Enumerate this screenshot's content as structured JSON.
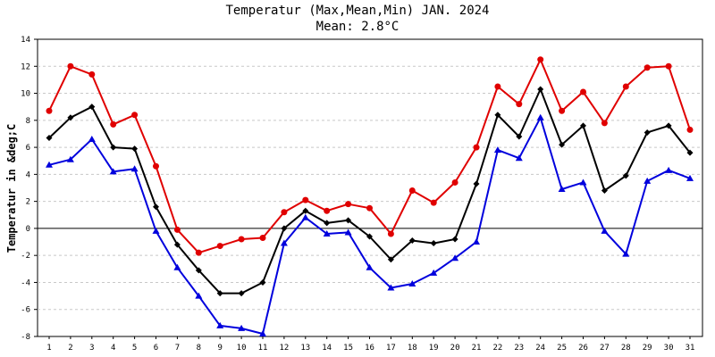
{
  "chart_data": {
    "type": "line",
    "title": "Temperatur (Max,Mean,Min) JAN. 2024",
    "subtitle": "Mean: 2.8°C",
    "ylabel": "Temperatur in &deg;C",
    "xlabel": "",
    "ylim": [
      -8,
      14
    ],
    "yticks": [
      -8,
      -6,
      -4,
      -2,
      0,
      2,
      4,
      6,
      8,
      10,
      12,
      14
    ],
    "categories": [
      "1",
      "2",
      "3",
      "4",
      "5",
      "6",
      "7",
      "8",
      "9",
      "10",
      "11",
      "12",
      "13",
      "14",
      "15",
      "16",
      "17",
      "18",
      "19",
      "20",
      "21",
      "22",
      "23",
      "24",
      "25",
      "26",
      "27",
      "28",
      "29",
      "30",
      "31"
    ],
    "grid": true,
    "series": [
      {
        "name": "Max",
        "color": "#e00000",
        "marker": "circle",
        "values": [
          8.7,
          12.0,
          11.4,
          7.7,
          8.4,
          4.6,
          -0.1,
          -1.8,
          -1.3,
          -0.8,
          -0.7,
          1.2,
          2.1,
          1.3,
          1.8,
          1.5,
          -0.4,
          2.8,
          1.9,
          3.4,
          6.0,
          10.5,
          9.2,
          12.5,
          8.7,
          10.1,
          7.8,
          10.5,
          11.9,
          12.0,
          7.3
        ]
      },
      {
        "name": "Mean",
        "color": "#000000",
        "marker": "diamond",
        "values": [
          6.7,
          8.2,
          9.0,
          6.0,
          5.9,
          1.6,
          -1.2,
          -3.1,
          -4.8,
          -4.8,
          -4.0,
          0.0,
          1.3,
          0.4,
          0.6,
          -0.6,
          -2.3,
          -0.9,
          -1.1,
          -0.8,
          3.3,
          8.4,
          6.8,
          10.3,
          6.2,
          7.6,
          2.8,
          3.9,
          7.1,
          7.6,
          5.6
        ]
      },
      {
        "name": "Min",
        "color": "#0000dd",
        "marker": "triangle",
        "values": [
          4.7,
          5.1,
          6.6,
          4.2,
          4.4,
          -0.2,
          -2.9,
          -5.0,
          -7.2,
          -7.4,
          -7.8,
          -1.1,
          0.8,
          -0.4,
          -0.3,
          -2.9,
          -4.4,
          -4.1,
          -3.3,
          -2.2,
          -1.0,
          5.8,
          5.2,
          8.2,
          2.9,
          3.4,
          -0.2,
          -1.9,
          3.5,
          4.3,
          3.7
        ]
      }
    ]
  }
}
